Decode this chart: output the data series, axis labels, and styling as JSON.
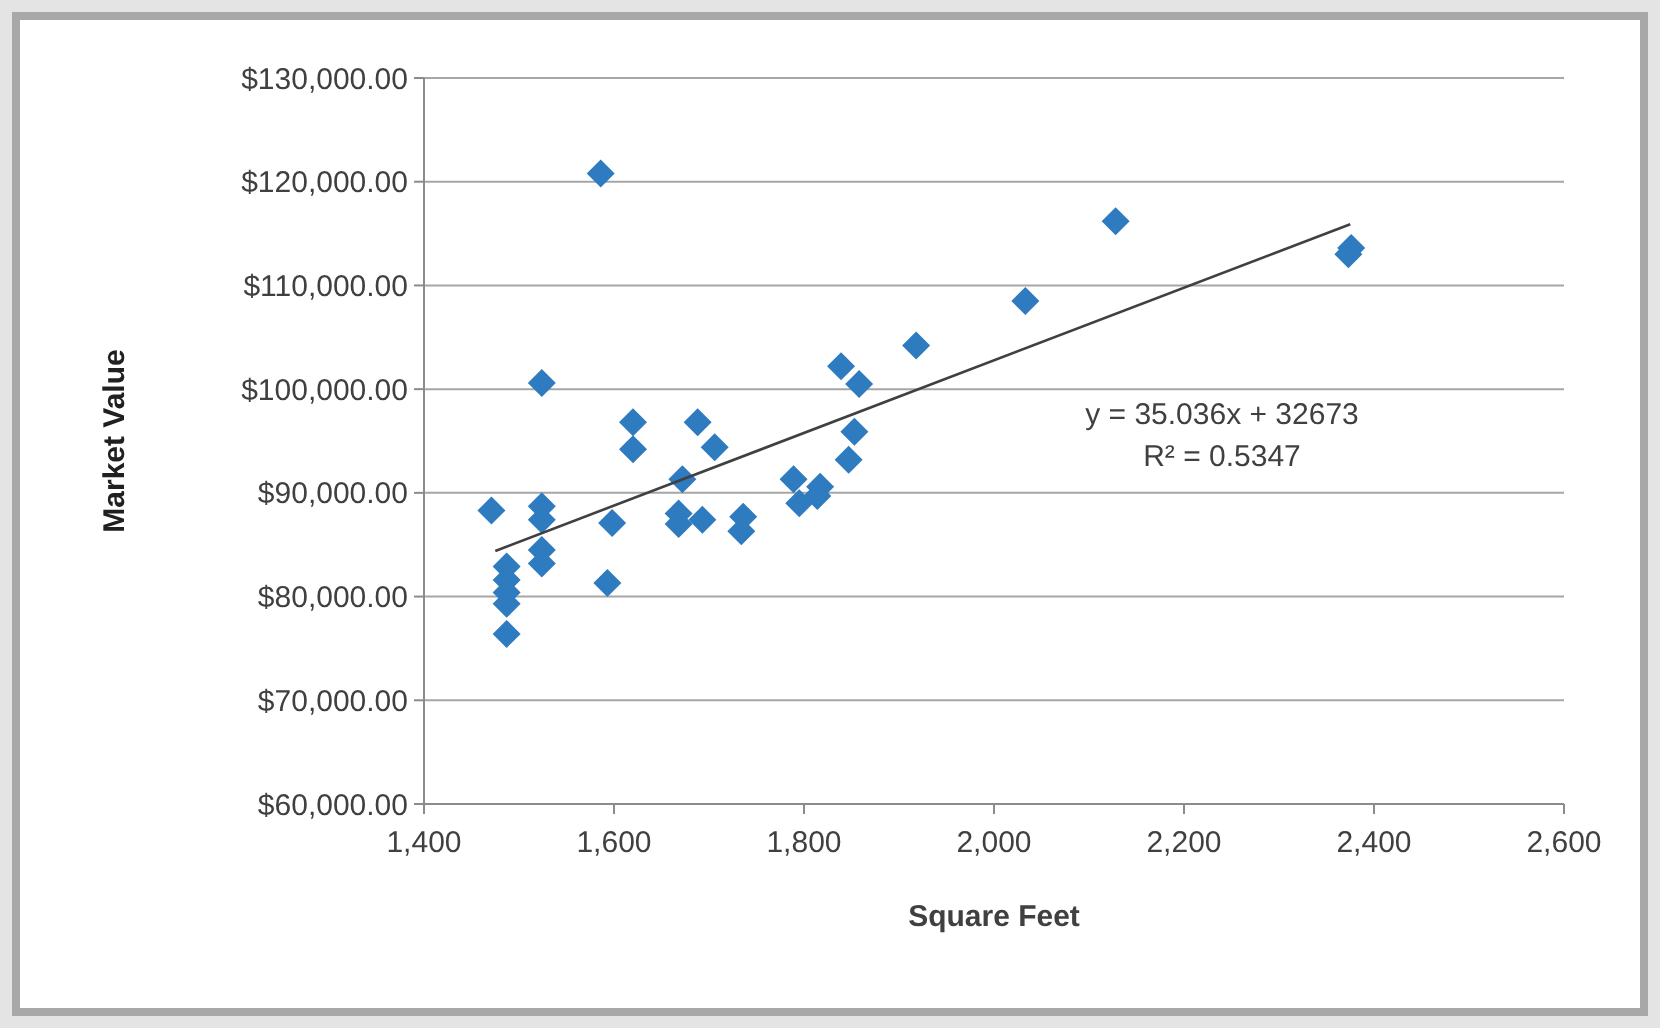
{
  "chart_data": {
    "type": "scatter",
    "xlabel": "Square Feet",
    "ylabel": "Market Value",
    "xlim": [
      1400,
      2600
    ],
    "xticks": [
      {
        "value": 1400,
        "label": "1,400"
      },
      {
        "value": 1600,
        "label": "1,600"
      },
      {
        "value": 1800,
        "label": "1,800"
      },
      {
        "value": 2000,
        "label": "2,000"
      },
      {
        "value": 2200,
        "label": "2,200"
      },
      {
        "value": 2400,
        "label": "2,400"
      },
      {
        "value": 2600,
        "label": "2,600"
      }
    ],
    "ylim": [
      60000,
      130000
    ],
    "yticks": [
      {
        "value": 60000,
        "label": "$60,000.00"
      },
      {
        "value": 70000,
        "label": "$70,000.00"
      },
      {
        "value": 80000,
        "label": "$80,000.00"
      },
      {
        "value": 90000,
        "label": "$90,000.00"
      },
      {
        "value": 100000,
        "label": "$100,000.00"
      },
      {
        "value": 110000,
        "label": "$110,000.00"
      },
      {
        "value": 120000,
        "label": "$120,000.00"
      },
      {
        "value": 130000,
        "label": "$130,000.00"
      }
    ],
    "grid": "y",
    "marker": "diamond",
    "series": [
      {
        "color": "#2e7bbf",
        "x": [
          1471,
          1487,
          1487,
          1487,
          1487,
          1487,
          1524,
          1524,
          1524,
          1524,
          1524,
          1598,
          1593,
          1586,
          1620,
          1620,
          1672,
          1668,
          1668,
          1693,
          1688,
          1706,
          1736,
          1734,
          1789,
          1795,
          1817,
          1814,
          1839,
          1858,
          1853,
          1847,
          1918,
          2033,
          2128,
          2376,
          2373
        ],
        "values": [
          88300,
          82900,
          81600,
          80400,
          79300,
          76400,
          100600,
          88700,
          87400,
          84500,
          83200,
          87100,
          81300,
          120800,
          96800,
          94200,
          91300,
          88000,
          87000,
          87400,
          96800,
          94400,
          87700,
          86300,
          91300,
          89000,
          90600,
          89700,
          102200,
          100500,
          95900,
          93200,
          104200,
          108500,
          116200,
          113600,
          113000
        ]
      },
      {
        "type": "line",
        "color": "#404040",
        "marker": "none",
        "x": [
          1475,
          2375
        ],
        "values": [
          84400,
          115900
        ]
      }
    ],
    "annotations": [
      "y = 35.036x + 32673",
      "R² = 0.5347"
    ]
  }
}
